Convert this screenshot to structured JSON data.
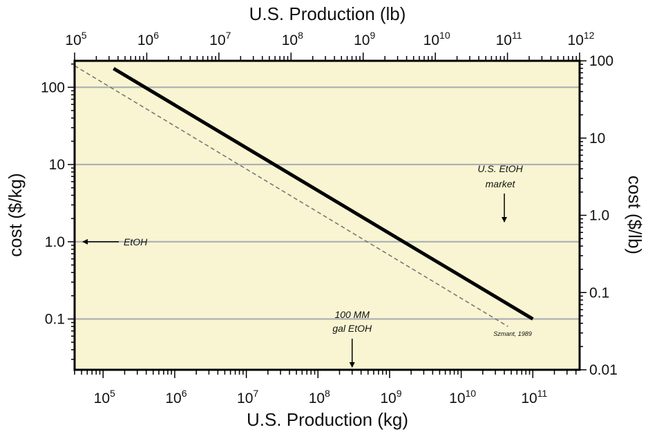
{
  "chart_data": {
    "type": "line",
    "x_scale": "log",
    "y_scale": "log",
    "xlabel": "U.S. Production (kg)",
    "ylabel": "cost ($/kg)",
    "x2label": "U.S. Production (lb)",
    "y2label": "cost ($/lb)",
    "xlim": [
      40000,
      450000000000
    ],
    "ylim": [
      0.022,
      220
    ],
    "x2lim": [
      100000,
      1000000000000
    ],
    "y2lim": [
      0.01,
      100
    ],
    "x_ticks": [
      {
        "base": "10",
        "exp": "5"
      },
      {
        "base": "10",
        "exp": "6"
      },
      {
        "base": "10",
        "exp": "7"
      },
      {
        "base": "10",
        "exp": "8"
      },
      {
        "base": "10",
        "exp": "9"
      },
      {
        "base": "10",
        "exp": "10"
      },
      {
        "base": "10",
        "exp": "11"
      }
    ],
    "x2_ticks": [
      {
        "base": "10",
        "exp": "5"
      },
      {
        "base": "10",
        "exp": "6"
      },
      {
        "base": "10",
        "exp": "7"
      },
      {
        "base": "10",
        "exp": "8"
      },
      {
        "base": "10",
        "exp": "9"
      },
      {
        "base": "10",
        "exp": "10"
      },
      {
        "base": "10",
        "exp": "11"
      },
      {
        "base": "10",
        "exp": "12"
      }
    ],
    "y_ticks": [
      "100",
      "10",
      "1.0",
      "0.1"
    ],
    "y2_ticks": [
      "100",
      "10",
      "1.0",
      "0.1",
      "0.01"
    ],
    "grid": true,
    "background": "#f9f5d2",
    "grid_color": "#aeb1b5",
    "series": [
      {
        "style": "solid",
        "color": "#000000",
        "x": [
          140000,
          100000000000
        ],
        "y": [
          175,
          0.1
        ]
      },
      {
        "style": "dashed",
        "color": "#777777",
        "x": [
          40000,
          45000000000
        ],
        "y": [
          190,
          0.08
        ]
      }
    ],
    "annotations": [
      {
        "text": "EtOH",
        "at": [
          50000,
          1.0
        ],
        "arrow": "left"
      },
      {
        "text": "U.S. EtOH market",
        "lines": [
          "U.S. EtOH",
          "market"
        ],
        "at": [
          40000000000,
          10
        ],
        "arrow": "down",
        "arrow_to": [
          40000000000,
          0.25
        ]
      },
      {
        "text": "100 MM gal EtOH",
        "lines": [
          "100 MM",
          "gal EtOH"
        ],
        "at": [
          300000000,
          0.13
        ],
        "arrow": "down",
        "arrow_to": [
          300000000,
          0.024
        ]
      },
      {
        "text": "Szmant, 1989",
        "at": [
          25000000000,
          0.075
        ],
        "arrow": "none"
      }
    ]
  }
}
